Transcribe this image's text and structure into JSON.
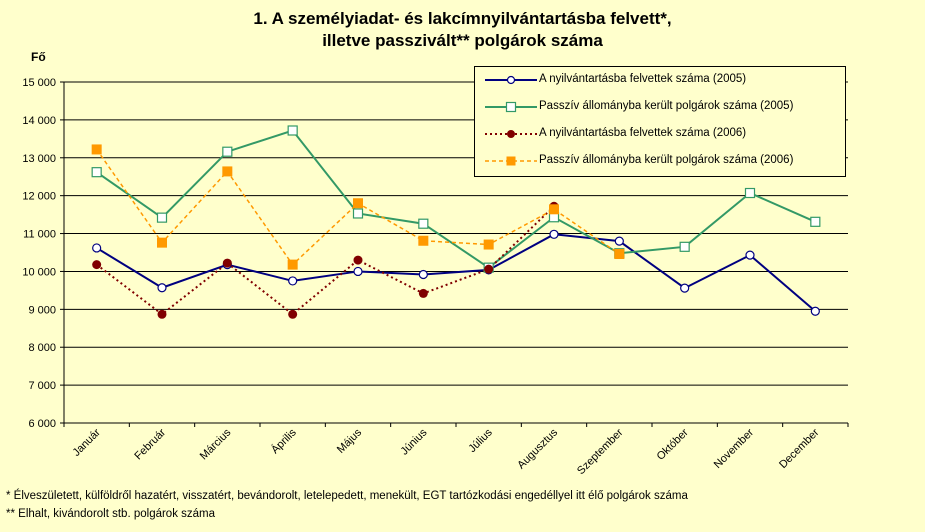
{
  "title_line1": "1. A személyiadat- és lakcímnyilvántartásba felvett*,",
  "title_line2": "illetve passzivált** polgárok száma",
  "chart_data": {
    "type": "line",
    "ylabel": "Fő",
    "ylim": [
      6000,
      15000
    ],
    "yticks": [
      6000,
      7000,
      8000,
      9000,
      10000,
      11000,
      12000,
      13000,
      14000,
      15000
    ],
    "ytick_labels": [
      "6 000",
      "7 000",
      "8 000",
      "9 000",
      "10 000",
      "11 000",
      "12 000",
      "13 000",
      "14 000",
      "15 000"
    ],
    "grid": true,
    "legend_position": "top-right",
    "categories": [
      "Január",
      "Február",
      "Március",
      "Április",
      "Május",
      "Június",
      "Július",
      "Augusztus",
      "Szeptember",
      "Október",
      "November",
      "December"
    ],
    "series": [
      {
        "name": "A nyilvántartásba felvettek száma (2005)",
        "color": "#000080",
        "style": "solid",
        "marker": "circle",
        "values": [
          10620,
          9570,
          10180,
          9750,
          10000,
          9920,
          10040,
          10980,
          10800,
          9560,
          10430,
          8950
        ]
      },
      {
        "name": "Passzív állományba került polgárok száma (2005)",
        "color": "#339966",
        "style": "solid",
        "marker": "square",
        "values": [
          12620,
          11420,
          13160,
          13720,
          11530,
          11260,
          10100,
          11430,
          10480,
          10650,
          12070,
          11310
        ]
      },
      {
        "name": "A nyilvántartásba felvettek száma (2006)",
        "color": "#800000",
        "style": "dotted",
        "marker": "dot",
        "values": [
          10180,
          8870,
          10220,
          8870,
          10300,
          9420,
          10060,
          11720,
          null,
          null,
          null,
          null
        ]
      },
      {
        "name": "Passzív állományba került polgárok száma (2006)",
        "color": "#ff9900",
        "style": "dashed",
        "marker": "filled-square",
        "values": [
          13220,
          10760,
          12640,
          10180,
          11800,
          10810,
          10710,
          11640,
          10460,
          null,
          null,
          null
        ]
      }
    ]
  },
  "footnotes": [
    "* Élveszületett, külföldről hazatért, visszatért, bevándorolt, letelepedett, menekült, EGT tartózkodási engedéllyel itt élő  polgárok száma",
    "** Elhalt, kivándorolt stb. polgárok száma"
  ]
}
